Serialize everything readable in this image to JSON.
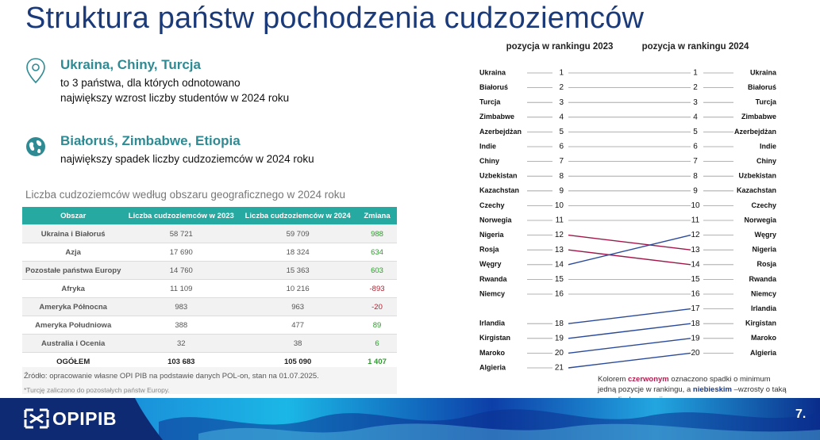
{
  "title": "Struktura państw pochodzenia cudzoziemców",
  "highlights": [
    {
      "icon": "map-pin-icon",
      "heading": "Ukraina, Chiny, Turcja",
      "lines": [
        "to 3 państwa, dla których odnotowano",
        "największy wzrost liczby studentów w 2024 roku"
      ]
    },
    {
      "icon": "globe-icon",
      "heading": "Białoruś, Zimbabwe, Etiopia",
      "lines": [
        "największy spadek liczby cudzoziemców w 2024 roku"
      ]
    }
  ],
  "table": {
    "caption": "Liczba cudzoziemców według obszaru geograficznego w 2024 roku",
    "columns": [
      "Obszar",
      "Liczba cudzoziemców w 2023",
      "Liczba cudzoziemców w 2024",
      "Zmiana"
    ],
    "rows": [
      {
        "region": "Ukraina i Białoruś",
        "y2023": "58 721",
        "y2024": "59 709",
        "change": "988"
      },
      {
        "region": "Azja",
        "y2023": "17 690",
        "y2024": "18 324",
        "change": "634"
      },
      {
        "region": "Pozostałe państwa Europy",
        "y2023": "14 760",
        "y2024": "15 363",
        "change": "603"
      },
      {
        "region": "Afryka",
        "y2023": "11 109",
        "y2024": "10 216",
        "change": "-893"
      },
      {
        "region": "Ameryka Północna",
        "y2023": "983",
        "y2024": "963",
        "change": "-20"
      },
      {
        "region": "Ameryka Południowa",
        "y2023": "388",
        "y2024": "477",
        "change": "89"
      },
      {
        "region": "Australia i Ocenia",
        "y2023": "32",
        "y2024": "38",
        "change": "6"
      }
    ],
    "total": {
      "region": "OGÓŁEM",
      "y2023": "103 683",
      "y2024": "105 090",
      "change": "1 407"
    },
    "source": "Źródło: opracowanie własne OPI PIB na podstawie danych POL-on, stan na 01.07.2025.",
    "footnote": "*Turcję zaliczono do pozostałych państw Europy."
  },
  "chart_data": {
    "type": "bump",
    "headers": [
      "pozycja w rankingu 2023",
      "pozycja w rankingu 2024"
    ],
    "ranking_2023": [
      {
        "rank": 1,
        "country": "Ukraina"
      },
      {
        "rank": 2,
        "country": "Białoruś"
      },
      {
        "rank": 3,
        "country": "Turcja"
      },
      {
        "rank": 4,
        "country": "Zimbabwe"
      },
      {
        "rank": 5,
        "country": "Azerbejdżan"
      },
      {
        "rank": 6,
        "country": "Indie"
      },
      {
        "rank": 7,
        "country": "Chiny"
      },
      {
        "rank": 8,
        "country": "Uzbekistan"
      },
      {
        "rank": 9,
        "country": "Kazachstan"
      },
      {
        "rank": 10,
        "country": "Czechy"
      },
      {
        "rank": 11,
        "country": "Norwegia"
      },
      {
        "rank": 12,
        "country": "Nigeria"
      },
      {
        "rank": 13,
        "country": "Rosja"
      },
      {
        "rank": 14,
        "country": "Węgry"
      },
      {
        "rank": 15,
        "country": "Rwanda"
      },
      {
        "rank": 16,
        "country": "Niemcy"
      },
      {
        "rank": 18,
        "country": "Irlandia"
      },
      {
        "rank": 19,
        "country": "Kirgistan"
      },
      {
        "rank": 20,
        "country": "Maroko"
      },
      {
        "rank": 21,
        "country": "Algieria"
      }
    ],
    "ranking_2024": [
      {
        "rank": 1,
        "country": "Ukraina"
      },
      {
        "rank": 2,
        "country": "Białoruś"
      },
      {
        "rank": 3,
        "country": "Turcja"
      },
      {
        "rank": 4,
        "country": "Zimbabwe"
      },
      {
        "rank": 5,
        "country": "Azerbejdżan"
      },
      {
        "rank": 6,
        "country": "Indie"
      },
      {
        "rank": 7,
        "country": "Chiny"
      },
      {
        "rank": 8,
        "country": "Uzbekistan"
      },
      {
        "rank": 9,
        "country": "Kazachstan"
      },
      {
        "rank": 10,
        "country": "Czechy"
      },
      {
        "rank": 11,
        "country": "Norwegia"
      },
      {
        "rank": 12,
        "country": "Węgry"
      },
      {
        "rank": 13,
        "country": "Nigeria"
      },
      {
        "rank": 14,
        "country": "Rosja"
      },
      {
        "rank": 15,
        "country": "Rwanda"
      },
      {
        "rank": 16,
        "country": "Niemcy"
      },
      {
        "rank": 17,
        "country": "Irlandia"
      },
      {
        "rank": 18,
        "country": "Kirgistan"
      },
      {
        "rank": 19,
        "country": "Maroko"
      },
      {
        "rank": 20,
        "country": "Algieria"
      }
    ],
    "colors": {
      "drop": "#a0174a",
      "rise": "#2a4a9a",
      "flat": "#9a9a9a"
    }
  },
  "legend_note": {
    "part1": "Kolorem ",
    "red_word": "czerwonym",
    "part2": " oznaczono spadki o minimum jedną pozycje w rankingu, a ",
    "blue_word": "niebieskim",
    "part3": " –wzrosty o taką samą liczbę pozycji"
  },
  "footer": {
    "logo_text": "OPIPIB",
    "page_number": "7."
  }
}
